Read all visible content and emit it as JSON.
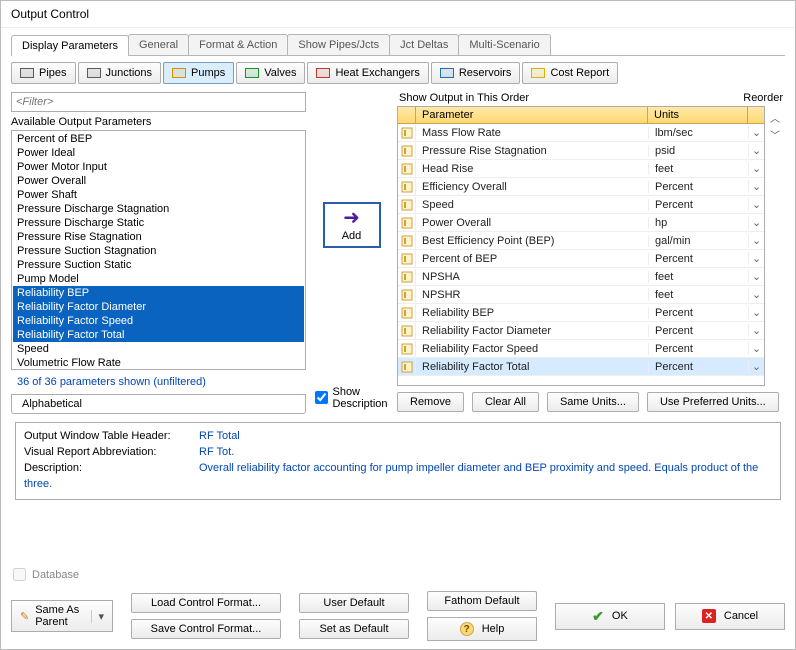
{
  "window": {
    "title": "Output Control"
  },
  "tabs": {
    "top": [
      "Display Parameters",
      "General",
      "Format & Action",
      "Show Pipes/Jcts",
      "Jct Deltas",
      "Multi-Scenario"
    ],
    "active_index": 0
  },
  "toolbar": [
    {
      "label": "Pipes",
      "icon_color": "#5a5a5a"
    },
    {
      "label": "Junctions",
      "icon_color": "#5a5a5a"
    },
    {
      "label": "Pumps",
      "icon_color": "#d98f00",
      "pressed": true
    },
    {
      "label": "Valves",
      "icon_color": "#1a8f2f"
    },
    {
      "label": "Heat Exchangers",
      "icon_color": "#c0392b"
    },
    {
      "label": "Reservoirs",
      "icon_color": "#1f6fb2"
    },
    {
      "label": "Cost Report",
      "icon_color": "#d7b300"
    }
  ],
  "filter": {
    "placeholder": "<Filter>"
  },
  "avail_header": "Available Output Parameters",
  "avail_params": [
    "Percent of BEP",
    "Power Ideal",
    "Power Motor Input",
    "Power Overall",
    "Power Shaft",
    "Pressure Discharge Stagnation",
    "Pressure Discharge Static",
    "Pressure Rise Stagnation",
    "Pressure Suction Stagnation",
    "Pressure Suction Static",
    "Pump Model",
    "Reliability BEP",
    "Reliability Factor Diameter",
    "Reliability Factor Speed",
    "Reliability Factor Total",
    "Speed",
    "Volumetric Flow Rate"
  ],
  "avail_selected": [
    11,
    12,
    13,
    14
  ],
  "count_line": "36 of 36 parameters shown (unfiltered)",
  "alphabetical_tab": "Alphabetical",
  "add_label": "Add",
  "show_desc_checked": true,
  "show_desc_label1": "Show",
  "show_desc_label2": "Description",
  "right_header_left": "Show Output in This Order",
  "right_header_right": "Reorder",
  "grid_col_param": "Parameter",
  "grid_col_units": "Units",
  "grid_rows": [
    {
      "p": "Mass Flow Rate",
      "u": "lbm/sec"
    },
    {
      "p": "Pressure Rise Stagnation",
      "u": "psid"
    },
    {
      "p": "Head Rise",
      "u": "feet"
    },
    {
      "p": "Efficiency Overall",
      "u": "Percent"
    },
    {
      "p": "Speed",
      "u": "Percent"
    },
    {
      "p": "Power Overall",
      "u": "hp"
    },
    {
      "p": "Best Efficiency Point (BEP)",
      "u": "gal/min"
    },
    {
      "p": "Percent of BEP",
      "u": "Percent"
    },
    {
      "p": "NPSHA",
      "u": "feet"
    },
    {
      "p": "NPSHR",
      "u": "feet"
    },
    {
      "p": "Reliability BEP",
      "u": "Percent"
    },
    {
      "p": "Reliability Factor Diameter",
      "u": "Percent"
    },
    {
      "p": "Reliability Factor Speed",
      "u": "Percent"
    },
    {
      "p": "Reliability Factor Total",
      "u": "Percent",
      "hl": true
    }
  ],
  "grid_buttons": {
    "remove": "Remove",
    "clear": "Clear All",
    "same": "Same Units...",
    "pref": "Use Preferred Units..."
  },
  "desc": {
    "lbl1": "Output Window Table Header:",
    "val1": "RF Total",
    "lbl2": "Visual Report Abbreviation:",
    "val2": "RF Tot.",
    "lbl3": "Description:",
    "val3": "Overall reliability factor accounting for pump impeller diameter and BEP proximity and speed. Equals product of the three."
  },
  "footer": {
    "database": "Database",
    "same_as_parent": "Same As Parent",
    "load": "Load Control Format...",
    "save": "Save Control Format...",
    "user_default": "User Default",
    "set_default": "Set as Default",
    "fathom_default": "Fathom Default",
    "help": "Help",
    "ok": "OK",
    "cancel": "Cancel"
  }
}
